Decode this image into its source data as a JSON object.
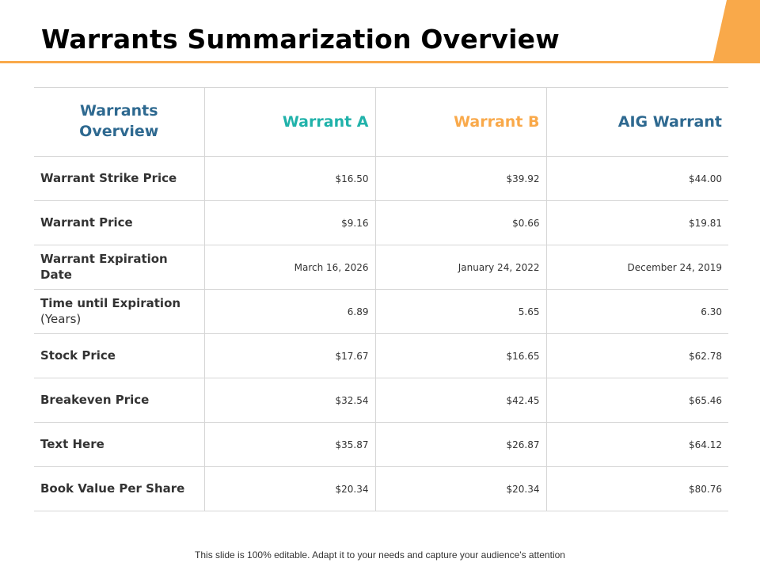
{
  "slide": {
    "title": "Warrants Summarization Overview",
    "footer": "This slide is 100% editable. Adapt it to your needs and capture your audience's attention"
  },
  "colors": {
    "accent_orange": "#f9a94a",
    "teal": "#20b2aa",
    "navy": "#2e6990"
  },
  "table": {
    "corner_header": "Warrants Overview",
    "columns": [
      "Warrant A",
      "Warrant B",
      "AIG Warrant"
    ],
    "rows": [
      {
        "label": "Warrant Strike Price",
        "values": [
          "$16.50",
          "$39.92",
          "$44.00"
        ]
      },
      {
        "label": "Warrant Price",
        "values": [
          "$9.16",
          "$0.66",
          "$19.81"
        ]
      },
      {
        "label": "Warrant Expiration Date",
        "values": [
          "March 16, 2026",
          "January  24, 2022",
          "December 24, 2019"
        ]
      },
      {
        "label": "Time until  Expiration",
        "label_suffix": "(Years)",
        "values": [
          "6.89",
          "5.65",
          "6.30"
        ]
      },
      {
        "label": "Stock Price",
        "values": [
          "$17.67",
          "$16.65",
          "$62.78"
        ]
      },
      {
        "label": "Breakeven Price",
        "values": [
          "$32.54",
          "$42.45",
          "$65.46"
        ]
      },
      {
        "label": "Text Here",
        "values": [
          "$35.87",
          "$26.87",
          "$64.12"
        ]
      },
      {
        "label": "Book Value Per Share",
        "values": [
          "$20.34",
          "$20.34",
          "$80.76"
        ]
      }
    ]
  }
}
